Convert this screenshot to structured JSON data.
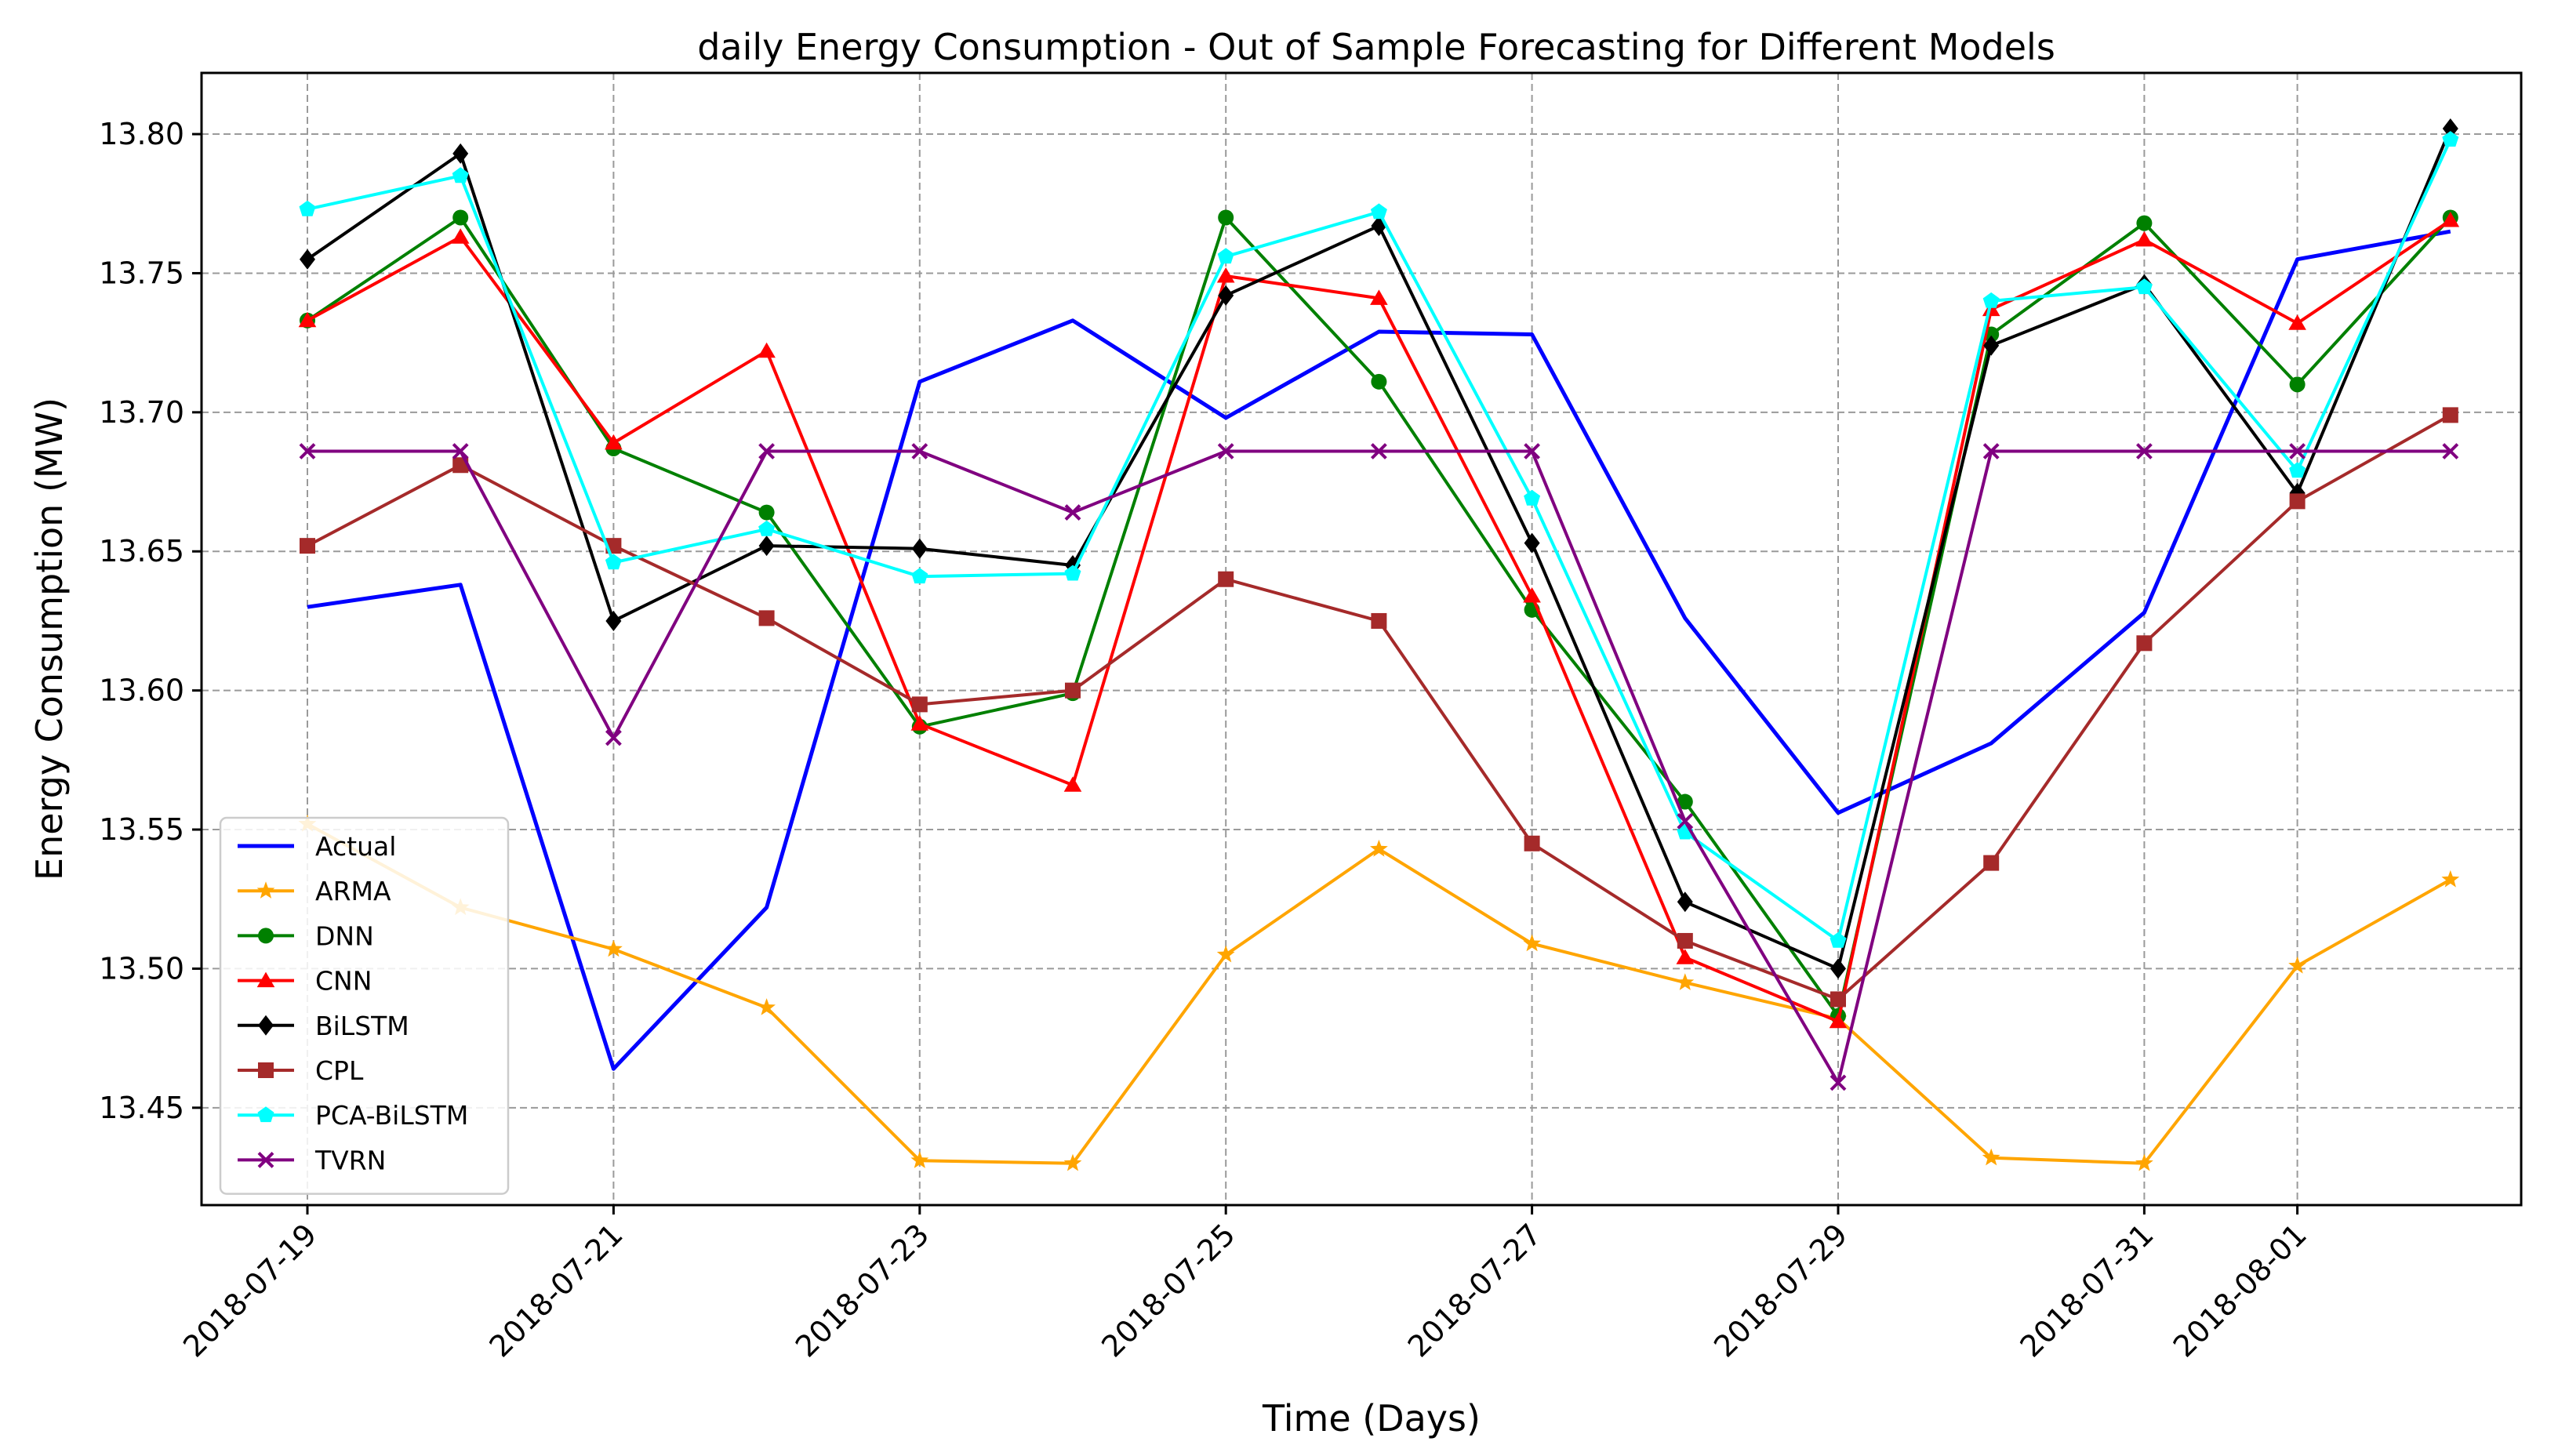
{
  "chart_data": {
    "type": "line",
    "title": "daily Energy Consumption - Out of Sample Forecasting for Different Models",
    "xlabel": "Time (Days)",
    "ylabel": "Energy Consumption (MW)",
    "ylim": [
      13.415,
      13.822
    ],
    "grid": true,
    "legend_position": "lower-left",
    "x": [
      "2018-07-19",
      "2018-07-20",
      "2018-07-21",
      "2018-07-22",
      "2018-07-23",
      "2018-07-24",
      "2018-07-25",
      "2018-07-26",
      "2018-07-27",
      "2018-07-28",
      "2018-07-29",
      "2018-07-30",
      "2018-07-31",
      "2018-08-01",
      "2018-08-02"
    ],
    "x_ticks": [
      "2018-07-19",
      "2018-07-21",
      "2018-07-23",
      "2018-07-25",
      "2018-07-27",
      "2018-07-29",
      "2018-07-31",
      "2018-08-01"
    ],
    "y_ticks": [
      "13.45",
      "13.50",
      "13.55",
      "13.60",
      "13.65",
      "13.70",
      "13.75",
      "13.80"
    ],
    "series": [
      {
        "name": "Actual",
        "color": "#0000ff",
        "marker": "none",
        "values": [
          13.63,
          13.638,
          13.464,
          13.522,
          13.711,
          13.733,
          13.698,
          13.729,
          13.728,
          13.626,
          13.556,
          13.581,
          13.628,
          13.755,
          13.765
        ]
      },
      {
        "name": "ARMA",
        "color": "#ffa500",
        "marker": "star",
        "values": [
          13.552,
          13.522,
          13.507,
          13.486,
          13.431,
          13.43,
          13.505,
          13.543,
          13.509,
          13.495,
          13.482,
          13.432,
          13.43,
          13.501,
          13.532
        ]
      },
      {
        "name": "DNN",
        "color": "#008000",
        "marker": "circle",
        "values": [
          13.733,
          13.77,
          13.687,
          13.664,
          13.587,
          13.599,
          13.77,
          13.711,
          13.629,
          13.56,
          13.483,
          13.728,
          13.768,
          13.71,
          13.77
        ]
      },
      {
        "name": "CNN",
        "color": "#ff0000",
        "marker": "triangle",
        "values": [
          13.733,
          13.763,
          13.689,
          13.722,
          13.588,
          13.566,
          13.749,
          13.741,
          13.634,
          13.504,
          13.481,
          13.737,
          13.762,
          13.732,
          13.769
        ]
      },
      {
        "name": "BiLSTM",
        "color": "#000000",
        "marker": "diamond",
        "values": [
          13.755,
          13.793,
          13.625,
          13.652,
          13.651,
          13.645,
          13.742,
          13.767,
          13.653,
          13.524,
          13.5,
          13.724,
          13.746,
          13.671,
          13.802
        ]
      },
      {
        "name": "CPL",
        "color": "#a52a2a",
        "marker": "square",
        "values": [
          13.652,
          13.681,
          13.652,
          13.626,
          13.595,
          13.6,
          13.64,
          13.625,
          13.545,
          13.51,
          13.489,
          13.538,
          13.617,
          13.668,
          13.699
        ]
      },
      {
        "name": "PCA-BiLSTM",
        "color": "#00ffff",
        "marker": "pentagon",
        "values": [
          13.773,
          13.785,
          13.646,
          13.658,
          13.641,
          13.642,
          13.756,
          13.772,
          13.669,
          13.549,
          13.51,
          13.74,
          13.745,
          13.679,
          13.798
        ]
      },
      {
        "name": "TVRN",
        "color": "#800080",
        "marker": "x",
        "values": [
          13.686,
          13.686,
          13.583,
          13.686,
          13.686,
          13.664,
          13.686,
          13.686,
          13.686,
          13.553,
          13.459,
          13.686,
          13.686,
          13.686,
          13.686
        ]
      }
    ]
  }
}
